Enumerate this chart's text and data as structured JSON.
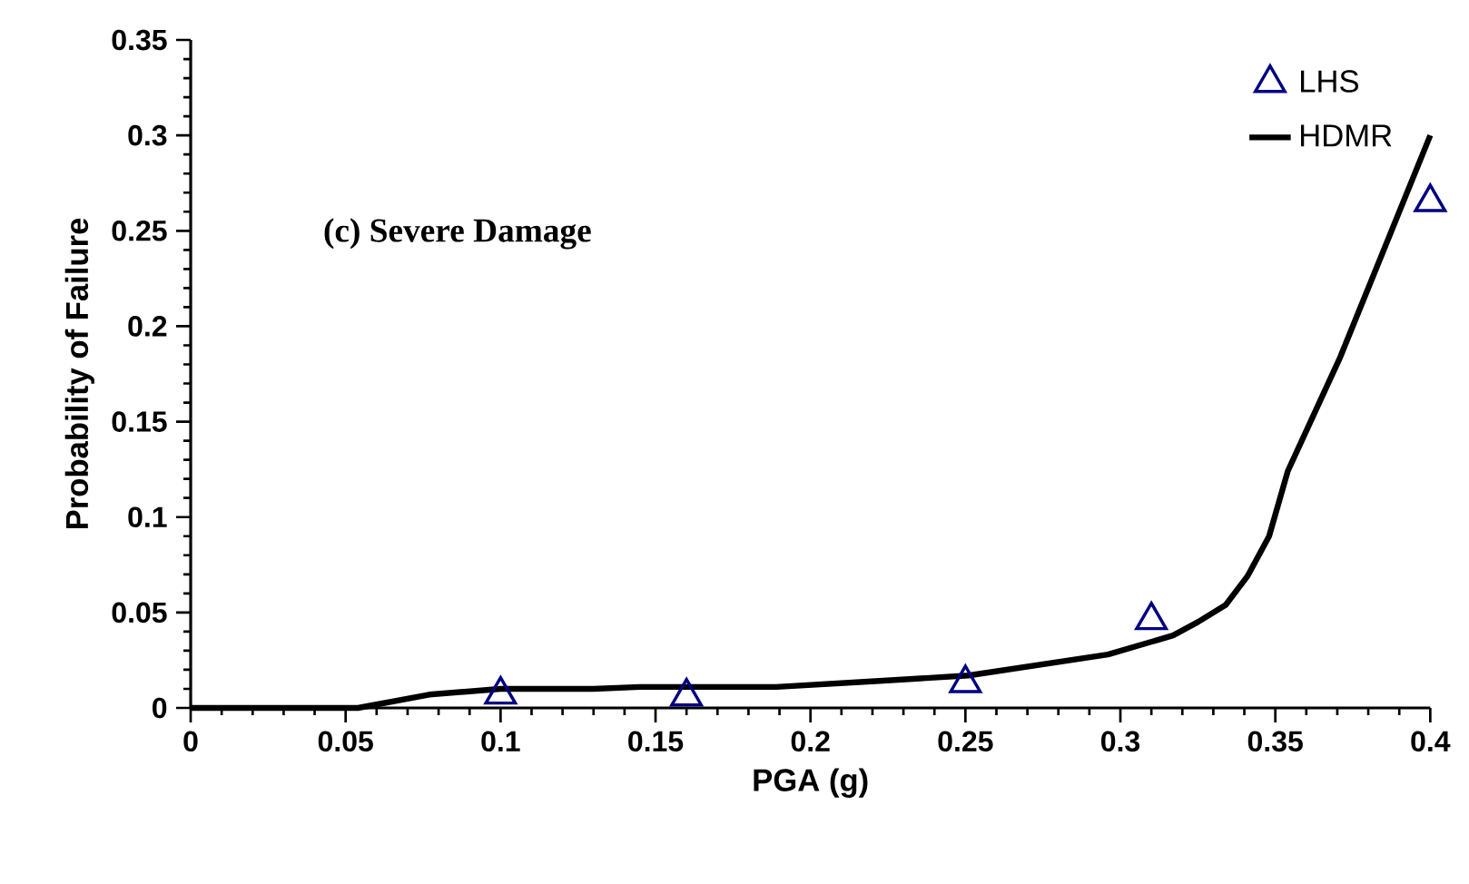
{
  "chart_data": {
    "type": "line",
    "annotations": [
      "(c) Severe Damage"
    ],
    "xlabel": "PGA (g)",
    "ylabel": "Probability of Failure",
    "xlim": [
      0,
      0.4
    ],
    "ylim": [
      0,
      0.35
    ],
    "xticks": [
      0,
      0.05,
      0.1,
      0.15,
      0.2,
      0.25,
      0.3,
      0.35,
      0.4
    ],
    "yticks": [
      0,
      0.05,
      0.1,
      0.15,
      0.2,
      0.25,
      0.3,
      0.35
    ],
    "grid": false,
    "legend": "top right",
    "series": [
      {
        "name": "LHS",
        "type": "scatter",
        "marker": "triangle",
        "color": "#000080",
        "x": [
          0.1,
          0.16,
          0.25,
          0.31,
          0.4
        ],
        "values": [
          0.007,
          0.006,
          0.013,
          0.046,
          0.265
        ]
      },
      {
        "name": "HDMR",
        "marker": "none",
        "color": "#000000",
        "x": [
          0,
          0.054,
          0.077,
          0.1,
          0.13,
          0.145,
          0.189,
          0.221,
          0.251,
          0.296,
          0.317,
          0.325,
          0.334,
          0.341,
          0.348,
          0.354,
          0.371,
          0.4
        ],
        "values": [
          0,
          0,
          0.007,
          0.01,
          0.01,
          0.011,
          0.011,
          0.014,
          0.017,
          0.028,
          0.038,
          0.045,
          0.054,
          0.069,
          0.09,
          0.124,
          0.184,
          0.3
        ]
      }
    ]
  }
}
